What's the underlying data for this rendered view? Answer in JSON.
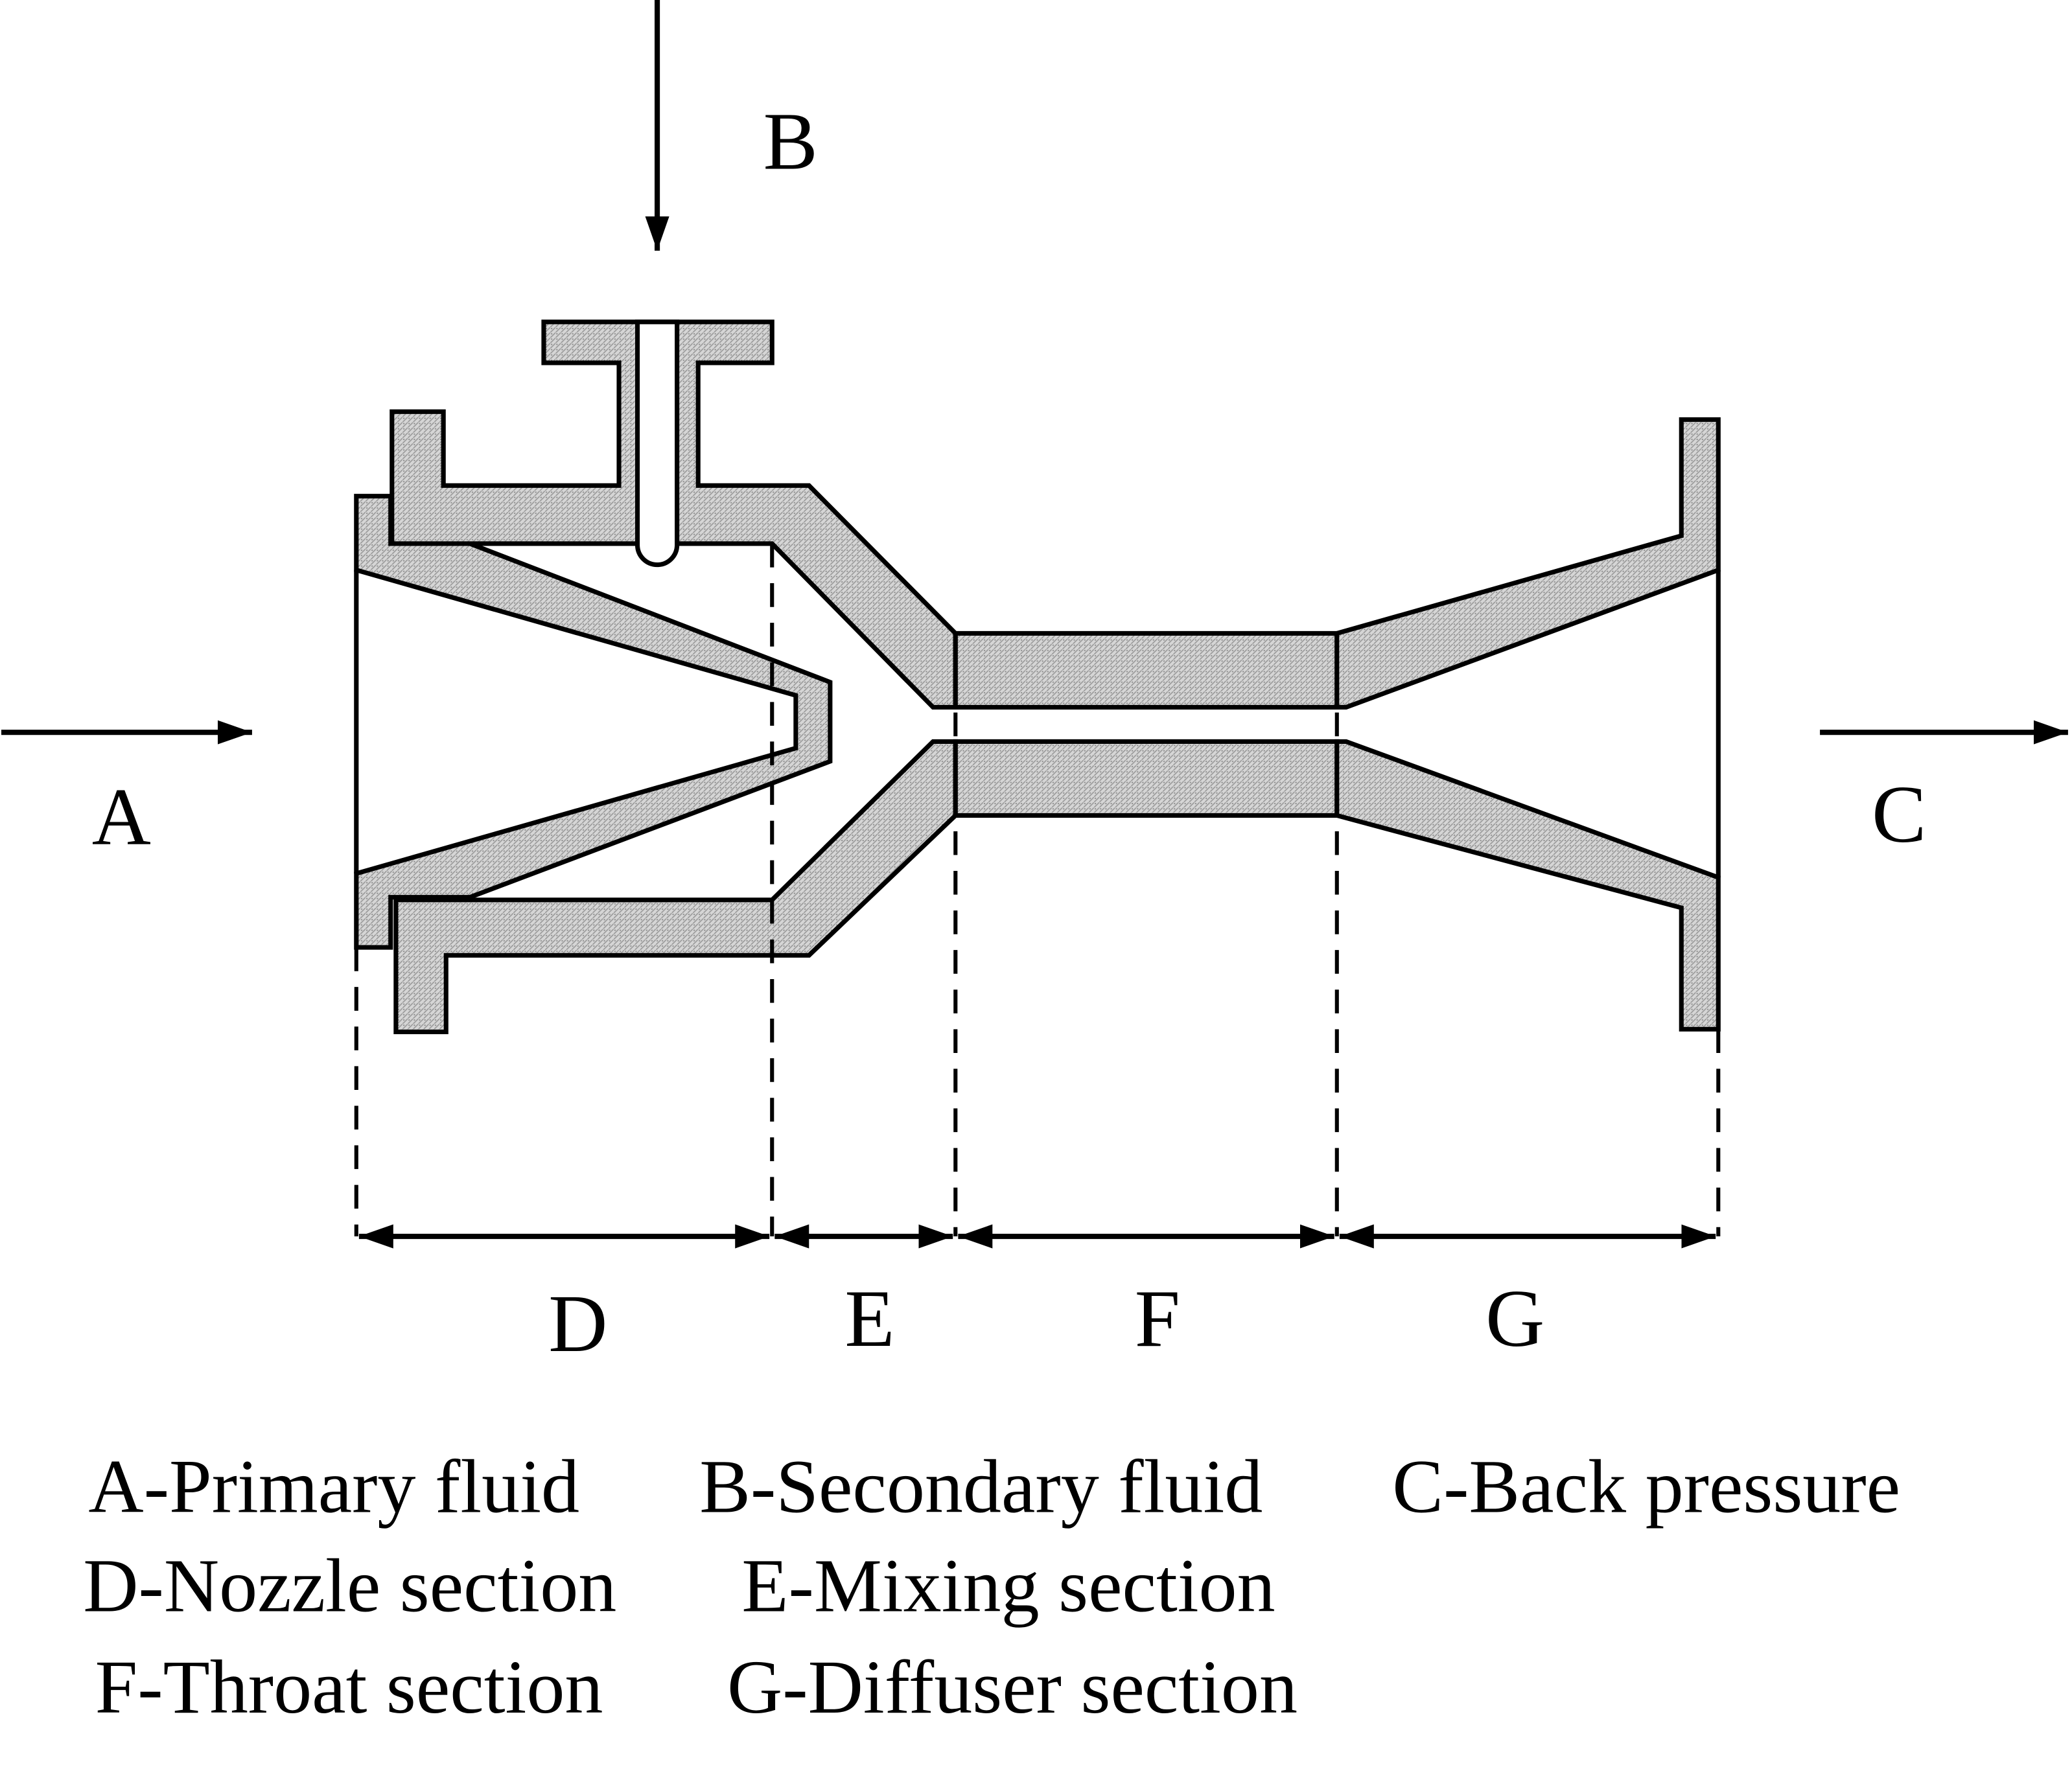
{
  "flow_labels": {
    "inlet_primary": "A",
    "inlet_secondary": "B",
    "outlet": "C"
  },
  "section_labels": [
    "D",
    "E",
    "F",
    "G"
  ],
  "legend": {
    "rows": [
      [
        "A-Primary fluid",
        "B-Secondary fluid",
        "C-Back pressure"
      ],
      [
        "D-Nozzle section",
        "E-Mixing section"
      ],
      [
        "F-Throat section",
        "G-Diffuser section"
      ]
    ]
  },
  "colors": {
    "line": "#000000",
    "hatch_fill": "#cfcfcf",
    "background": "#ffffff"
  }
}
